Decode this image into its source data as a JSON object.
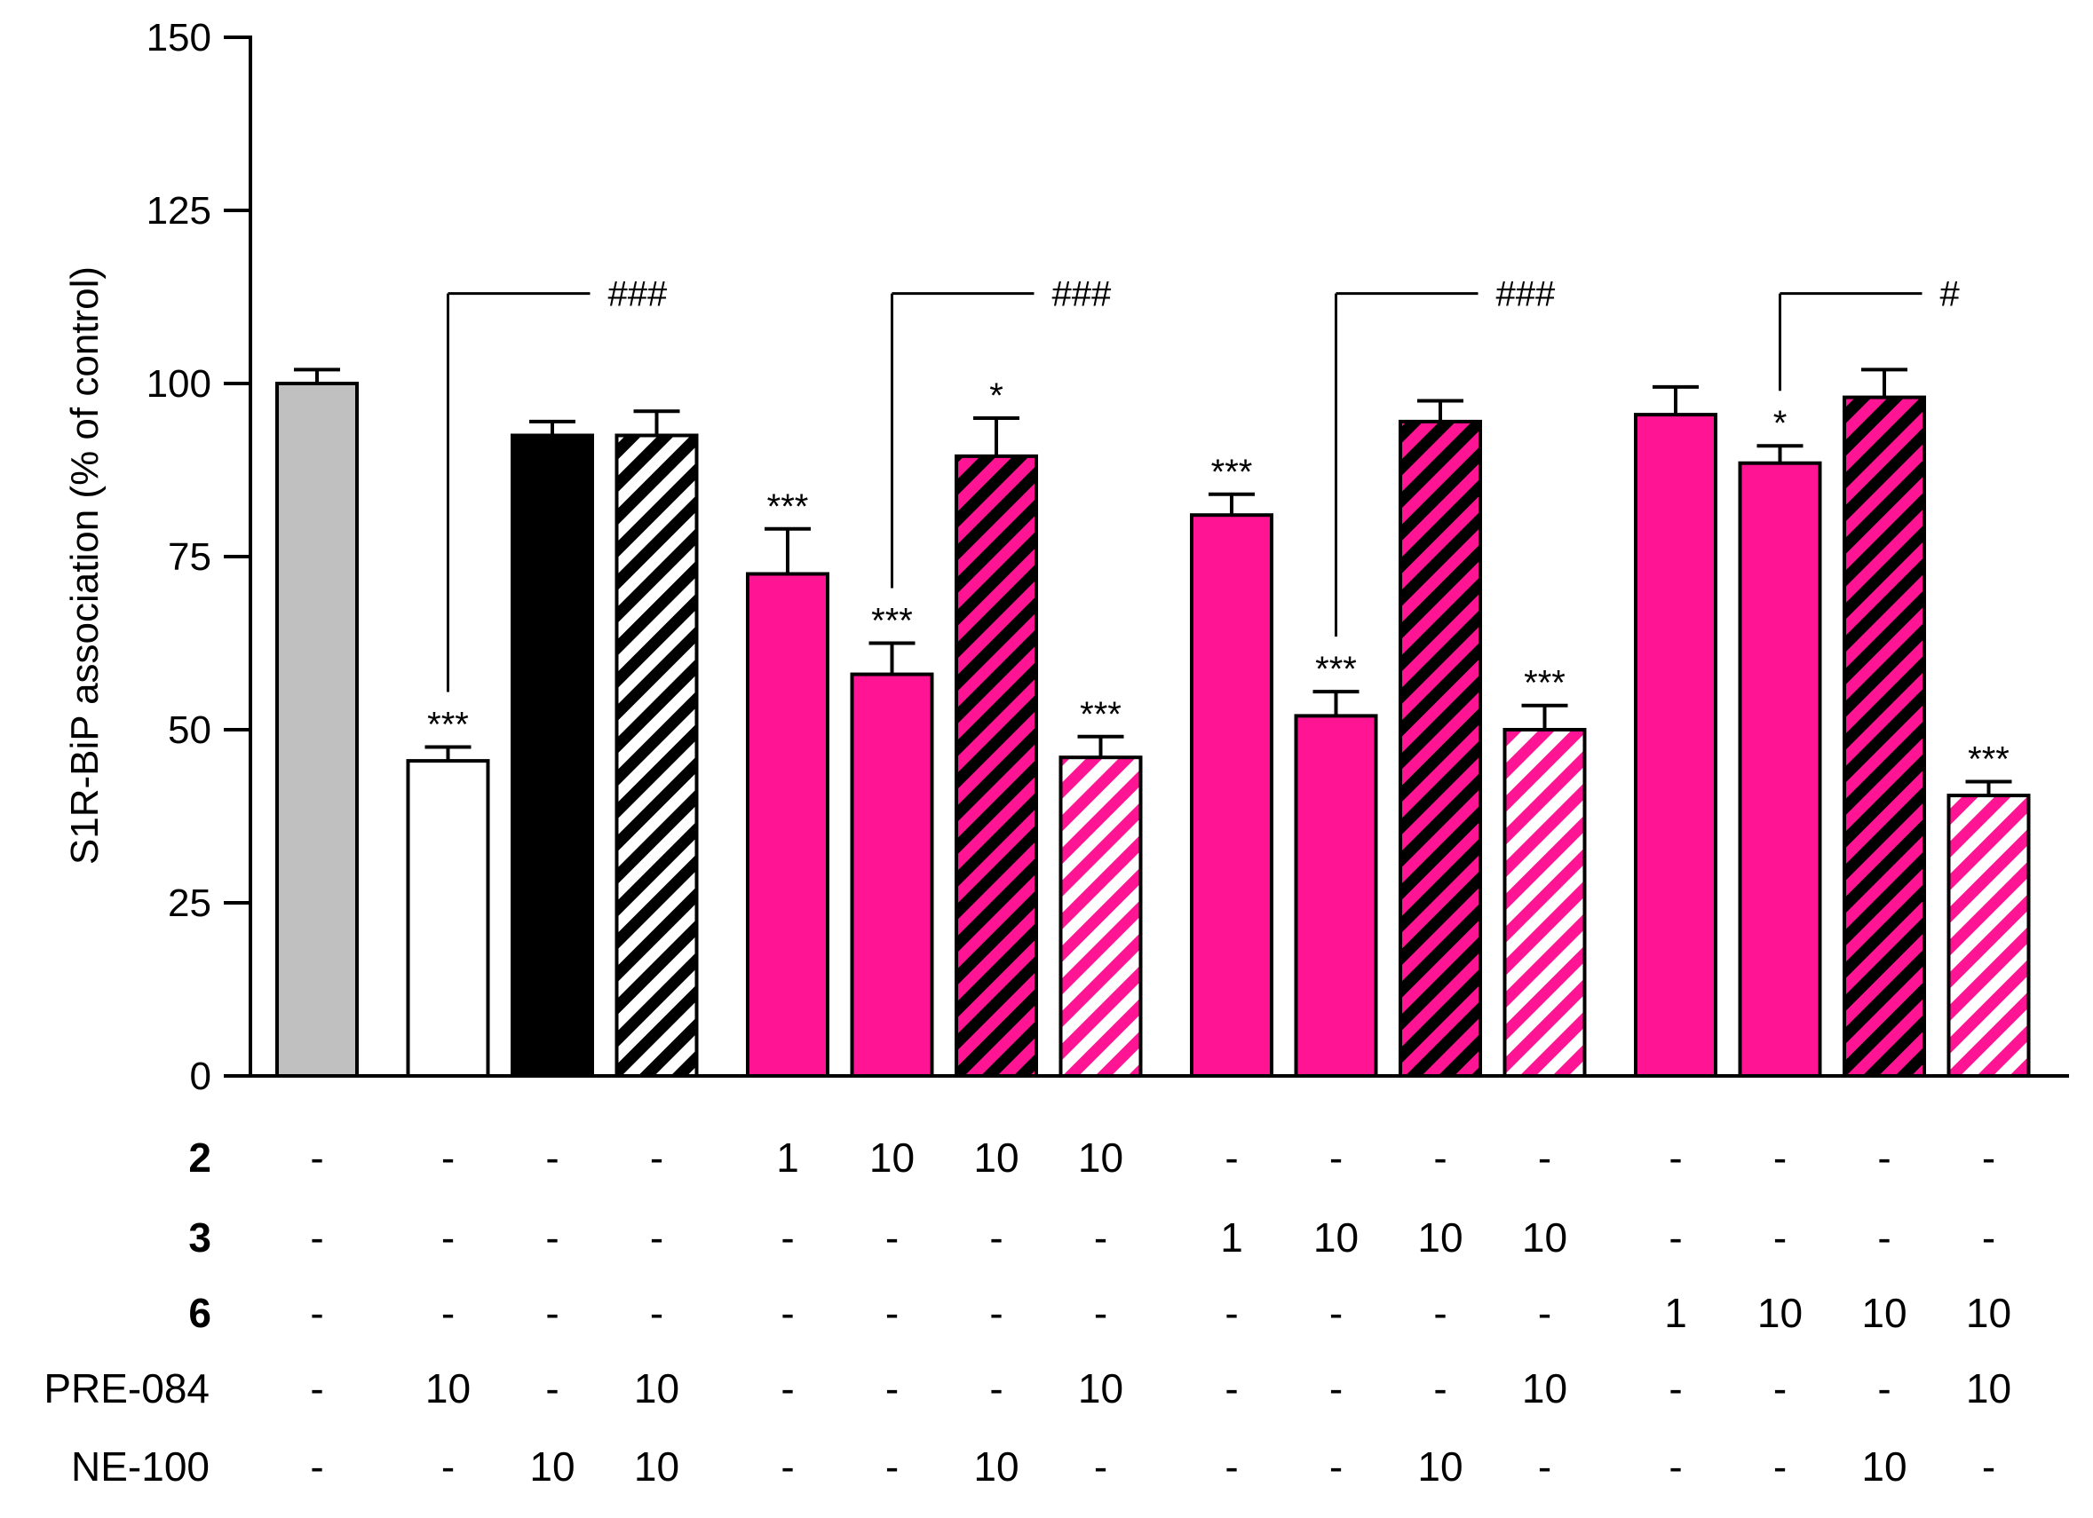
{
  "chart_data": {
    "type": "bar",
    "title": "",
    "xlabel": "",
    "ylabel": "S1R-BiP association (% of control)",
    "ylim": [
      0,
      150
    ],
    "yticks": [
      0,
      25,
      50,
      75,
      100,
      125,
      150
    ],
    "grid": false,
    "colors": {
      "gray": "#c0c0c0",
      "white": "#ffffff",
      "black": "#000000",
      "pink": "#ff1493",
      "axis": "#000000"
    },
    "bars": [
      {
        "value": 100,
        "error": 2,
        "group": 0,
        "fill": "gray",
        "hatch": "none",
        "sig": ""
      },
      {
        "value": 45.5,
        "error": 2,
        "group": 1,
        "fill": "white",
        "hatch": "none",
        "sig": "***"
      },
      {
        "value": 92.5,
        "error": 2,
        "group": 1,
        "fill": "black",
        "hatch": "none",
        "sig": ""
      },
      {
        "value": 92.5,
        "error": 3.5,
        "group": 1,
        "fill": "black",
        "hatch": "white",
        "sig": ""
      },
      {
        "value": 72.5,
        "error": 6.5,
        "group": 2,
        "fill": "pink",
        "hatch": "none",
        "sig": "***"
      },
      {
        "value": 58,
        "error": 4.5,
        "group": 2,
        "fill": "pink",
        "hatch": "none",
        "sig": "***"
      },
      {
        "value": 89.5,
        "error": 5.5,
        "group": 2,
        "fill": "pink",
        "hatch": "black",
        "sig": "*"
      },
      {
        "value": 46,
        "error": 3,
        "group": 2,
        "fill": "pink",
        "hatch": "white",
        "sig": "***"
      },
      {
        "value": 81,
        "error": 3,
        "group": 3,
        "fill": "pink",
        "hatch": "none",
        "sig": "***"
      },
      {
        "value": 52,
        "error": 3.5,
        "group": 3,
        "fill": "pink",
        "hatch": "none",
        "sig": "***"
      },
      {
        "value": 94.5,
        "error": 3,
        "group": 3,
        "fill": "pink",
        "hatch": "black",
        "sig": ""
      },
      {
        "value": 50,
        "error": 3.5,
        "group": 3,
        "fill": "pink",
        "hatch": "white",
        "sig": "***"
      },
      {
        "value": 95.5,
        "error": 4,
        "group": 4,
        "fill": "pink",
        "hatch": "none",
        "sig": ""
      },
      {
        "value": 88.5,
        "error": 2.5,
        "group": 4,
        "fill": "pink",
        "hatch": "none",
        "sig": "*"
      },
      {
        "value": 98,
        "error": 4,
        "group": 4,
        "fill": "pink",
        "hatch": "black",
        "sig": ""
      },
      {
        "value": 40.5,
        "error": 2,
        "group": 4,
        "fill": "pink",
        "hatch": "white",
        "sig": "***"
      }
    ],
    "comparisons": [
      {
        "bar": 1,
        "label": "###",
        "y": 113
      },
      {
        "bar": 5,
        "label": "###",
        "y": 113
      },
      {
        "bar": 9,
        "label": "###",
        "y": 113
      },
      {
        "bar": 13,
        "label": "#",
        "y": 113
      }
    ],
    "table_rows": [
      {
        "label": "2",
        "bold": true,
        "values": [
          "-",
          "-",
          "-",
          "-",
          "1",
          "10",
          "10",
          "10",
          "-",
          "-",
          "-",
          "-",
          "-",
          "-",
          "-",
          "-"
        ]
      },
      {
        "label": "3",
        "bold": true,
        "values": [
          "-",
          "-",
          "-",
          "-",
          "-",
          "-",
          "-",
          "-",
          "1",
          "10",
          "10",
          "10",
          "-",
          "-",
          "-",
          "-"
        ]
      },
      {
        "label": "6",
        "bold": true,
        "values": [
          "-",
          "-",
          "-",
          "-",
          "-",
          "-",
          "-",
          "-",
          "-",
          "-",
          "-",
          "-",
          "1",
          "10",
          "10",
          "10"
        ]
      },
      {
        "label": "PRE-084",
        "bold": false,
        "values": [
          "-",
          "10",
          "-",
          "10",
          "-",
          "-",
          "-",
          "10",
          "-",
          "-",
          "-",
          "10",
          "-",
          "-",
          "-",
          "10"
        ]
      },
      {
        "label": "NE-100",
        "bold": false,
        "values": [
          "-",
          "-",
          "10",
          "10",
          "-",
          "-",
          "10",
          "-",
          "-",
          "-",
          "10",
          "-",
          "-",
          "-",
          "10",
          "-"
        ]
      }
    ]
  }
}
